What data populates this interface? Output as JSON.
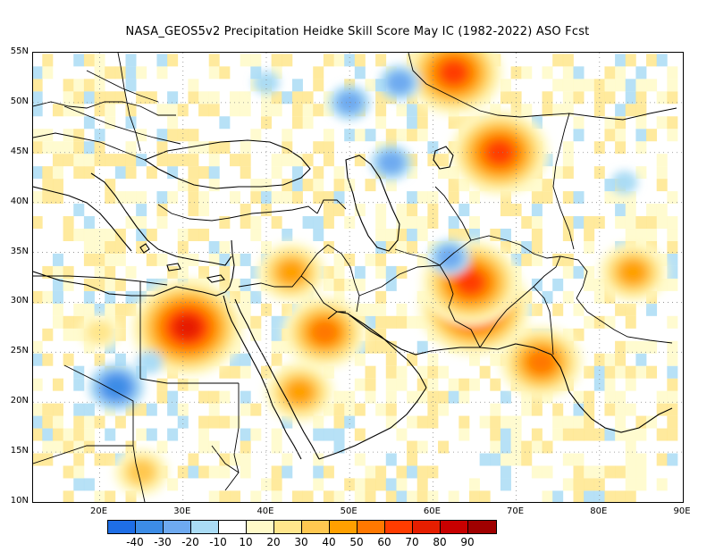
{
  "title": "NASA_GEOS5v2  Precipitation Heidke Skill Score May IC (1982-2022) ASO Fcst",
  "map": {
    "lon_range": [
      12,
      90
    ],
    "lat_range": [
      10,
      55
    ],
    "lat_labels": [
      "55N",
      "50N",
      "45N",
      "40N",
      "35N",
      "30N",
      "25N",
      "20N",
      "15N",
      "10N"
    ],
    "lon_labels": [
      "20E",
      "30E",
      "40E",
      "50E",
      "60E",
      "70E",
      "80E",
      "90E"
    ]
  },
  "colorbar": {
    "colors": [
      "#1e6ee6",
      "#3c8ce6",
      "#6eaaf0",
      "#aadcf5",
      "#ffffff",
      "#fffac8",
      "#ffe68c",
      "#ffc850",
      "#ffa000",
      "#ff7800",
      "#ff3c00",
      "#e61e00",
      "#c80000",
      "#a00000"
    ],
    "labels": [
      "-40",
      "-30",
      "-20",
      "-10",
      "10",
      "20",
      "30",
      "40",
      "50",
      "60",
      "70",
      "80",
      "90"
    ]
  },
  "chart_data": {
    "type": "heatmap",
    "title": "NASA_GEOS5v2  Precipitation Heidke Skill Score May IC (1982-2022) ASO Fcst",
    "xlabel": "",
    "ylabel": "",
    "xlim": [
      12,
      90
    ],
    "ylim": [
      10,
      55
    ],
    "grid": true,
    "units": "Heidke Skill Score",
    "levels": [
      -40,
      -30,
      -20,
      -10,
      10,
      20,
      30,
      40,
      50,
      60,
      70,
      80,
      90
    ],
    "notable_regions": [
      {
        "lon": 30.5,
        "lat": 27.5,
        "value": 70
      },
      {
        "lon": 65,
        "lat": 29.5,
        "value": 70
      },
      {
        "lon": 64.5,
        "lat": 32,
        "value": 60
      },
      {
        "lon": 68,
        "lat": 45,
        "value": 60
      },
      {
        "lon": 62.5,
        "lat": 53,
        "value": 60
      },
      {
        "lon": 47,
        "lat": 27,
        "value": 50
      },
      {
        "lon": 73,
        "lat": 24,
        "value": 50
      },
      {
        "lon": 84,
        "lat": 33,
        "value": 40
      },
      {
        "lon": 43,
        "lat": 33,
        "value": 40
      },
      {
        "lon": 44,
        "lat": 21,
        "value": 40
      },
      {
        "lon": 20,
        "lat": 27,
        "value": 20
      },
      {
        "lon": 25,
        "lat": 13,
        "value": 30
      },
      {
        "lon": 22,
        "lat": 21.5,
        "value": -30
      },
      {
        "lon": 50,
        "lat": 50,
        "value": -20
      },
      {
        "lon": 40,
        "lat": 52,
        "value": -10
      },
      {
        "lon": 56,
        "lat": 52,
        "value": -20
      },
      {
        "lon": 62,
        "lat": 34.5,
        "value": -20
      },
      {
        "lon": 55,
        "lat": 44,
        "value": -20
      },
      {
        "lon": 26,
        "lat": 24,
        "value": -10
      },
      {
        "lon": 83,
        "lat": 42,
        "value": -10
      }
    ]
  }
}
